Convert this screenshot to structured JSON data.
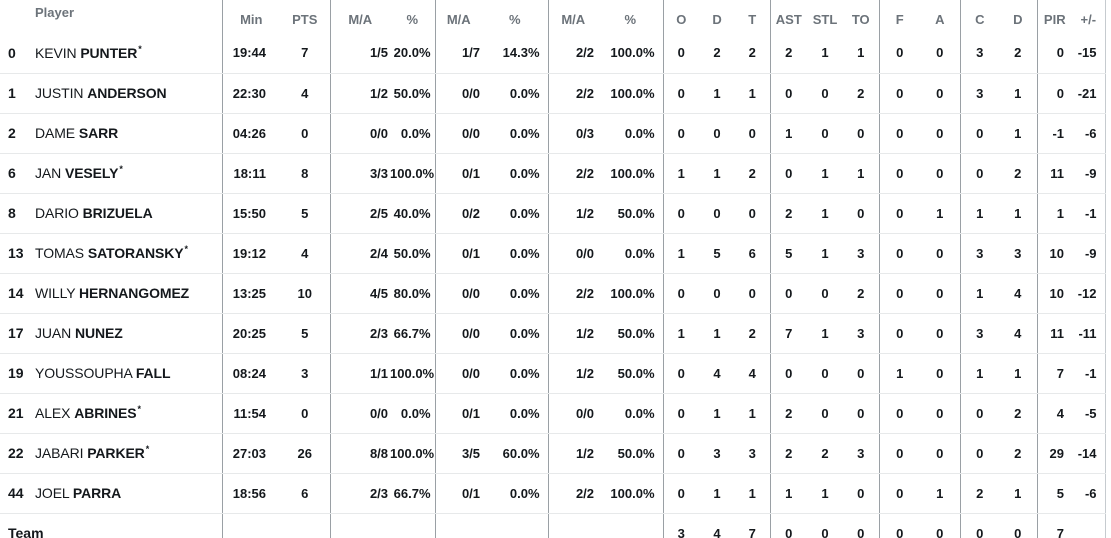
{
  "colors": {
    "background": "#ffffff",
    "text": "#14181c",
    "header_text": "#6c737a",
    "column_divider": "#9aa0a5",
    "row_divider": "#e7e9ea"
  },
  "headers": {
    "player": "Player",
    "min": "Min",
    "pts": "PTS",
    "ma": "M/A",
    "pct": "%",
    "o": "O",
    "d": "D",
    "t": "T",
    "ast": "AST",
    "stl": "STL",
    "to": "TO",
    "f": "F",
    "a": "A",
    "c": "C",
    "d2": "D",
    "pir": "PIR",
    "plus_minus": "+/-"
  },
  "starter_mark": "*",
  "players": [
    {
      "num": "0",
      "first": "KEVIN",
      "last": "PUNTER",
      "star": "*",
      "min": "19:44",
      "pts": "7",
      "m2": "1/5",
      "p2": "20.0%",
      "m3": "1/7",
      "p3": "14.3%",
      "mf": "2/2",
      "pf": "100.0%",
      "o": "0",
      "d": "2",
      "t": "2",
      "ast": "2",
      "stl": "1",
      "to": "1",
      "f": "0",
      "a": "0",
      "c": "3",
      "d2": "2",
      "pir": "0",
      "pm": "-15"
    },
    {
      "num": "1",
      "first": "JUSTIN",
      "last": "ANDERSON",
      "star": "",
      "min": "22:30",
      "pts": "4",
      "m2": "1/2",
      "p2": "50.0%",
      "m3": "0/0",
      "p3": "0.0%",
      "mf": "2/2",
      "pf": "100.0%",
      "o": "0",
      "d": "1",
      "t": "1",
      "ast": "0",
      "stl": "0",
      "to": "2",
      "f": "0",
      "a": "0",
      "c": "3",
      "d2": "1",
      "pir": "0",
      "pm": "-21"
    },
    {
      "num": "2",
      "first": "DAME",
      "last": "SARR",
      "star": "",
      "min": "04:26",
      "pts": "0",
      "m2": "0/0",
      "p2": "0.0%",
      "m3": "0/0",
      "p3": "0.0%",
      "mf": "0/3",
      "pf": "0.0%",
      "o": "0",
      "d": "0",
      "t": "0",
      "ast": "1",
      "stl": "0",
      "to": "0",
      "f": "0",
      "a": "0",
      "c": "0",
      "d2": "1",
      "pir": "-1",
      "pm": "-6"
    },
    {
      "num": "6",
      "first": "JAN",
      "last": "VESELY",
      "star": "*",
      "min": "18:11",
      "pts": "8",
      "m2": "3/3",
      "p2": "100.0%",
      "m3": "0/1",
      "p3": "0.0%",
      "mf": "2/2",
      "pf": "100.0%",
      "o": "1",
      "d": "1",
      "t": "2",
      "ast": "0",
      "stl": "1",
      "to": "1",
      "f": "0",
      "a": "0",
      "c": "0",
      "d2": "2",
      "pir": "11",
      "pm": "-9"
    },
    {
      "num": "8",
      "first": "DARIO",
      "last": "BRIZUELA",
      "star": "",
      "min": "15:50",
      "pts": "5",
      "m2": "2/5",
      "p2": "40.0%",
      "m3": "0/2",
      "p3": "0.0%",
      "mf": "1/2",
      "pf": "50.0%",
      "o": "0",
      "d": "0",
      "t": "0",
      "ast": "2",
      "stl": "1",
      "to": "0",
      "f": "0",
      "a": "1",
      "c": "1",
      "d2": "1",
      "pir": "1",
      "pm": "-1"
    },
    {
      "num": "13",
      "first": "TOMAS",
      "last": "SATORANSKY",
      "star": "*",
      "min": "19:12",
      "pts": "4",
      "m2": "2/4",
      "p2": "50.0%",
      "m3": "0/1",
      "p3": "0.0%",
      "mf": "0/0",
      "pf": "0.0%",
      "o": "1",
      "d": "5",
      "t": "6",
      "ast": "5",
      "stl": "1",
      "to": "3",
      "f": "0",
      "a": "0",
      "c": "3",
      "d2": "3",
      "pir": "10",
      "pm": "-9"
    },
    {
      "num": "14",
      "first": "WILLY",
      "last": "HERNANGOMEZ",
      "star": "",
      "min": "13:25",
      "pts": "10",
      "m2": "4/5",
      "p2": "80.0%",
      "m3": "0/0",
      "p3": "0.0%",
      "mf": "2/2",
      "pf": "100.0%",
      "o": "0",
      "d": "0",
      "t": "0",
      "ast": "0",
      "stl": "0",
      "to": "2",
      "f": "0",
      "a": "0",
      "c": "1",
      "d2": "4",
      "pir": "10",
      "pm": "-12"
    },
    {
      "num": "17",
      "first": "JUAN",
      "last": "NUNEZ",
      "star": "",
      "min": "20:25",
      "pts": "5",
      "m2": "2/3",
      "p2": "66.7%",
      "m3": "0/0",
      "p3": "0.0%",
      "mf": "1/2",
      "pf": "50.0%",
      "o": "1",
      "d": "1",
      "t": "2",
      "ast": "7",
      "stl": "1",
      "to": "3",
      "f": "0",
      "a": "0",
      "c": "3",
      "d2": "4",
      "pir": "11",
      "pm": "-11"
    },
    {
      "num": "19",
      "first": "YOUSSOUPHA",
      "last": "FALL",
      "star": "",
      "min": "08:24",
      "pts": "3",
      "m2": "1/1",
      "p2": "100.0%",
      "m3": "0/0",
      "p3": "0.0%",
      "mf": "1/2",
      "pf": "50.0%",
      "o": "0",
      "d": "4",
      "t": "4",
      "ast": "0",
      "stl": "0",
      "to": "0",
      "f": "1",
      "a": "0",
      "c": "1",
      "d2": "1",
      "pir": "7",
      "pm": "-1"
    },
    {
      "num": "21",
      "first": "ALEX",
      "last": "ABRINES",
      "star": "*",
      "min": "11:54",
      "pts": "0",
      "m2": "0/0",
      "p2": "0.0%",
      "m3": "0/1",
      "p3": "0.0%",
      "mf": "0/0",
      "pf": "0.0%",
      "o": "0",
      "d": "1",
      "t": "1",
      "ast": "2",
      "stl": "0",
      "to": "0",
      "f": "0",
      "a": "0",
      "c": "0",
      "d2": "2",
      "pir": "4",
      "pm": "-5"
    },
    {
      "num": "22",
      "first": "JABARI",
      "last": "PARKER",
      "star": "*",
      "min": "27:03",
      "pts": "26",
      "m2": "8/8",
      "p2": "100.0%",
      "m3": "3/5",
      "p3": "60.0%",
      "mf": "1/2",
      "pf": "50.0%",
      "o": "0",
      "d": "3",
      "t": "3",
      "ast": "2",
      "stl": "2",
      "to": "3",
      "f": "0",
      "a": "0",
      "c": "0",
      "d2": "2",
      "pir": "29",
      "pm": "-14"
    },
    {
      "num": "44",
      "first": "JOEL",
      "last": "PARRA",
      "star": "",
      "min": "18:56",
      "pts": "6",
      "m2": "2/3",
      "p2": "66.7%",
      "m3": "0/1",
      "p3": "0.0%",
      "mf": "2/2",
      "pf": "100.0%",
      "o": "0",
      "d": "1",
      "t": "1",
      "ast": "1",
      "stl": "1",
      "to": "0",
      "f": "0",
      "a": "1",
      "c": "2",
      "d2": "1",
      "pir": "5",
      "pm": "-6"
    }
  ],
  "team_row": {
    "label": "Team",
    "min": "",
    "pts": "",
    "m2": "",
    "p2": "",
    "m3": "",
    "p3": "",
    "mf": "",
    "pf": "",
    "o": "3",
    "d": "4",
    "t": "7",
    "ast": "0",
    "stl": "0",
    "to": "0",
    "f": "0",
    "a": "0",
    "c": "0",
    "d2": "0",
    "pir": "7",
    "pm": ""
  }
}
